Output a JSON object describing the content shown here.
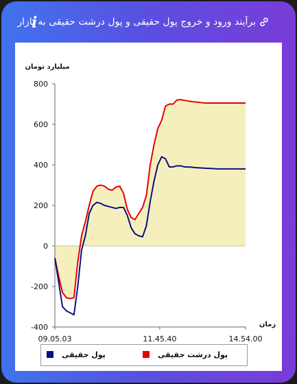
{
  "header": {
    "title": "برآیند ورود و خروج پول حقیقی و پول درشت حقیقی به بازار",
    "info_icon": "i",
    "link_icon": "link-icon"
  },
  "colors": {
    "header_gradient_start": "#3f73ee",
    "header_gradient_end": "#7a3bd8",
    "real_money": "#0d0d80",
    "big_real_money": "#e60000",
    "area_fill": "#f5efbe"
  },
  "chart_data": {
    "type": "area",
    "ylabel": "میلیارد تومان",
    "xlabel": "زمان",
    "ylim": [
      -400,
      800
    ],
    "yticks": [
      -400,
      -200,
      0,
      200,
      400,
      600,
      800
    ],
    "xtick_labels": [
      "09.05.03",
      "11.45.40",
      "14.54.00"
    ],
    "x": [
      0,
      2,
      4,
      6,
      8,
      10,
      12,
      14,
      16,
      18,
      20,
      22,
      24,
      26,
      28,
      30,
      32,
      34,
      36,
      38,
      40,
      42,
      44,
      46,
      48,
      50,
      52,
      54,
      56,
      58,
      60,
      62,
      64,
      66,
      68,
      70,
      72,
      74,
      76,
      78,
      80,
      82,
      84,
      86,
      88,
      90,
      92,
      94,
      96,
      98,
      100
    ],
    "series": [
      {
        "name": "پول حقیقی",
        "values": [
          -60,
          -180,
          -300,
          -320,
          -330,
          -340,
          -200,
          -20,
          50,
          160,
          200,
          215,
          210,
          200,
          195,
          190,
          185,
          190,
          190,
          150,
          90,
          60,
          50,
          45,
          100,
          220,
          320,
          400,
          440,
          430,
          390,
          390,
          395,
          395,
          390,
          390,
          388,
          386,
          385,
          384,
          383,
          382,
          381,
          380,
          380,
          380,
          380,
          380,
          380,
          380,
          380
        ]
      },
      {
        "name": "پول درشت حقیقی",
        "values": [
          -60,
          -150,
          -230,
          -255,
          -260,
          -255,
          -80,
          50,
          120,
          200,
          270,
          295,
          300,
          295,
          280,
          275,
          290,
          295,
          260,
          180,
          140,
          130,
          160,
          190,
          250,
          400,
          500,
          580,
          620,
          690,
          700,
          700,
          720,
          722,
          718,
          715,
          712,
          710,
          708,
          706,
          705,
          705,
          705,
          705,
          705,
          705,
          705,
          705,
          705,
          705,
          705
        ]
      }
    ],
    "legend": [
      "پول حقیقی",
      "پول درشت حقیقی"
    ],
    "legend_placement": "bottom",
    "grid": false
  }
}
